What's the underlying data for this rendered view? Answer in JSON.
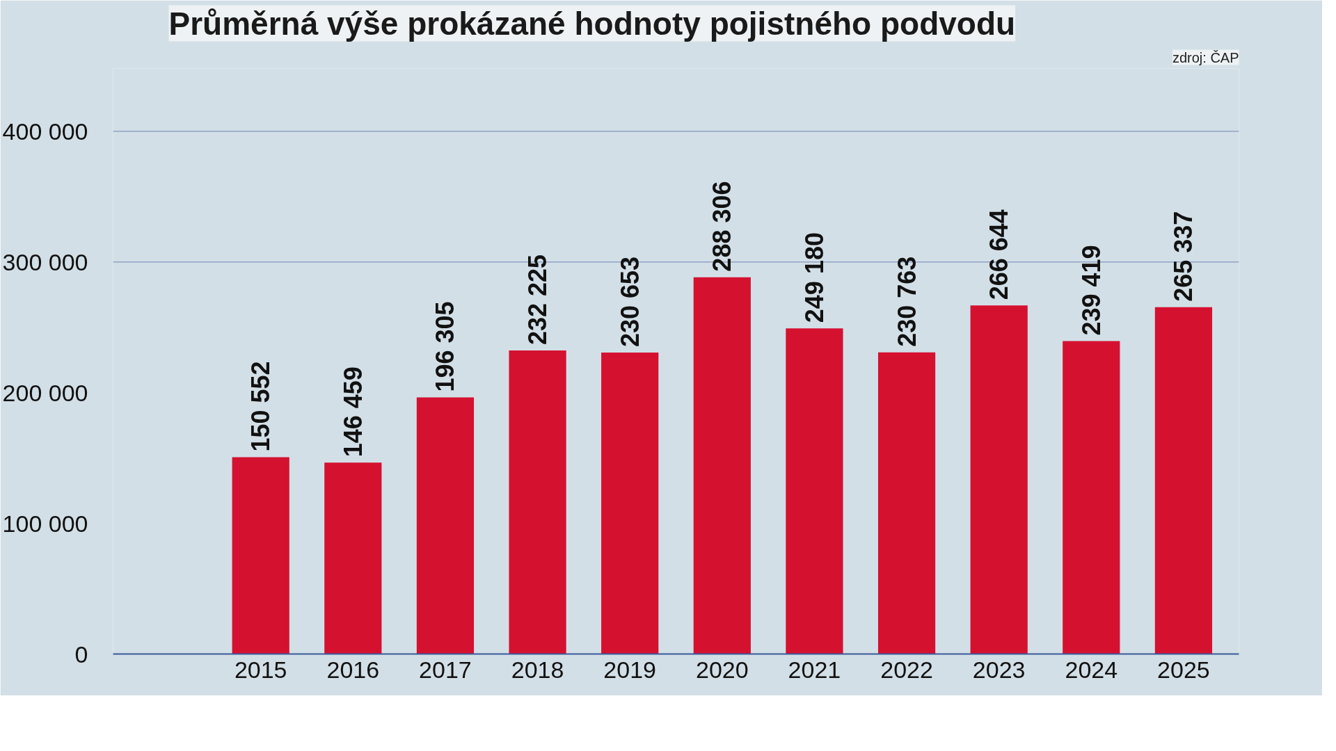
{
  "chart_data": {
    "type": "bar",
    "title": "Průměrná výše prokázané hodnoty pojistného podvodu",
    "annotations": [
      "zdroj: ČAP"
    ],
    "categories": [
      "2015",
      "2016",
      "2017",
      "2018",
      "2019",
      "2020",
      "2021",
      "2022",
      "2023",
      "2024",
      "2025"
    ],
    "values": [
      150552,
      146459,
      196305,
      232225,
      230653,
      288306,
      249180,
      230763,
      266644,
      239419,
      265337
    ],
    "color": "#d51130",
    "data_labels": true,
    "ylim": [
      0,
      400000
    ],
    "yticks": [
      {
        "value": 0,
        "label": "0"
      },
      {
        "value": 100000,
        "label": "100 000"
      },
      {
        "value": 200000,
        "label": "200 000"
      },
      {
        "value": 300000,
        "label": "300 000"
      },
      {
        "value": 400000,
        "label": "400 000"
      }
    ],
    "ref_lines": [
      {
        "axis": "y",
        "value": 300000,
        "color": "#8fa3c4"
      },
      {
        "axis": "y",
        "value": 400000,
        "color": "#8fa3c4"
      }
    ],
    "grid": false
  }
}
